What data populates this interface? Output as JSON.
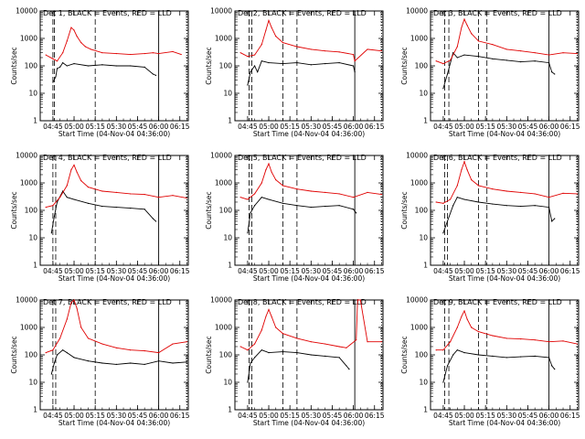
{
  "figure": {
    "ylabel": "Counts/sec",
    "xlabel": "Start Time (04-Nov-04 04:36:00)",
    "xticks": [
      "04:45",
      "05:00",
      "05:15",
      "05:30",
      "05:45",
      "06:00",
      "06:15"
    ],
    "yticks": [
      "1",
      "10",
      "100",
      "1000",
      "10000"
    ],
    "colors": {
      "events": "#000000",
      "lld": "#e00000",
      "axes": "#000000"
    }
  },
  "chart_data": [
    {
      "type": "line",
      "title": "Det 1, BLACK = Events, RED = LLD",
      "xlabel": "Start Time (04-Nov-04 04:36:00)",
      "ylabel": "Counts/sec",
      "yscale": "log",
      "ylim": [
        1,
        10000
      ],
      "xlim": [
        "04:36",
        "06:21"
      ],
      "markers": [
        "04:45",
        "04:46",
        "05:15",
        "06:00",
        "06:20"
      ],
      "series": [
        {
          "name": "BLACK = Events",
          "x": [
            "04:45",
            "04:47",
            "04:48",
            "04:50",
            "04:52",
            "04:55",
            "05:00",
            "05:10",
            "05:20",
            "05:30",
            "05:40",
            "05:50",
            "05:56",
            "05:58"
          ],
          "values": [
            25,
            40,
            80,
            90,
            130,
            100,
            120,
            100,
            110,
            100,
            100,
            90,
            50,
            45
          ]
        },
        {
          "name": "RED = LLD",
          "x": [
            "04:40",
            "04:45",
            "04:48",
            "04:52",
            "04:55",
            "04:58",
            "05:00",
            "05:02",
            "05:05",
            "05:08",
            "05:12",
            "05:20",
            "05:30",
            "05:40",
            "05:50",
            "05:56",
            "06:00",
            "06:10",
            "06:16"
          ],
          "values": [
            250,
            180,
            150,
            300,
            800,
            2500,
            2000,
            1200,
            700,
            500,
            400,
            300,
            280,
            260,
            280,
            300,
            280,
            330,
            260
          ]
        }
      ]
    },
    {
      "type": "line",
      "title": "Det 2, BLACK = Events, RED = LLD",
      "xlabel": "Start Time (04-Nov-04 04:36:00)",
      "ylabel": "Counts/sec",
      "yscale": "log",
      "ylim": [
        1,
        10000
      ],
      "xlim": [
        "04:36",
        "06:21"
      ],
      "markers": [
        "04:46",
        "04:48",
        "05:10",
        "05:20",
        "06:01",
        "06:20"
      ],
      "series": [
        {
          "name": "BLACK = Events",
          "x": [
            "04:45",
            "04:47",
            "04:50",
            "04:52",
            "04:55",
            "05:00",
            "05:10",
            "05:20",
            "05:30",
            "05:40",
            "05:50",
            "06:00",
            "06:01"
          ],
          "values": [
            20,
            60,
            100,
            60,
            150,
            130,
            120,
            130,
            110,
            120,
            130,
            100,
            60
          ]
        },
        {
          "name": "RED = LLD",
          "x": [
            "04:40",
            "04:45",
            "04:50",
            "04:55",
            "04:58",
            "05:00",
            "05:02",
            "05:05",
            "05:10",
            "05:20",
            "05:30",
            "05:40",
            "05:50",
            "06:00",
            "06:01",
            "06:10",
            "06:20"
          ],
          "values": [
            300,
            220,
            250,
            600,
            2000,
            4500,
            2500,
            1200,
            700,
            500,
            400,
            350,
            320,
            260,
            150,
            400,
            350
          ]
        }
      ]
    },
    {
      "type": "line",
      "title": "Det 3, BLACK = Events, RED = LLD",
      "xlabel": "Start Time (04-Nov-04 04:36:00)",
      "ylabel": "Counts/sec",
      "yscale": "log",
      "ylim": [
        1,
        10000
      ],
      "xlim": [
        "04:36",
        "06:21"
      ],
      "markers": [
        "04:46",
        "04:49",
        "05:10",
        "05:16",
        "06:00",
        "06:20"
      ],
      "series": [
        {
          "name": "BLACK = Events",
          "x": [
            "04:45",
            "04:48",
            "04:52",
            "04:55",
            "05:00",
            "05:10",
            "05:20",
            "05:30",
            "05:40",
            "05:50",
            "06:00",
            "06:02",
            "06:04"
          ],
          "values": [
            15,
            50,
            300,
            200,
            250,
            220,
            180,
            160,
            140,
            150,
            130,
            60,
            50
          ]
        },
        {
          "name": "RED = LLD",
          "x": [
            "04:40",
            "04:45",
            "04:50",
            "04:55",
            "04:58",
            "05:00",
            "05:02",
            "05:05",
            "05:10",
            "05:20",
            "05:30",
            "05:40",
            "05:50",
            "06:00",
            "06:10",
            "06:20"
          ],
          "values": [
            150,
            120,
            160,
            500,
            2500,
            5000,
            3000,
            1500,
            800,
            600,
            400,
            350,
            300,
            250,
            300,
            280
          ]
        }
      ]
    },
    {
      "type": "line",
      "title": "Det 4, BLACK = Events, RED = LLD",
      "xlabel": "Start Time (04-Nov-04 04:36:00)",
      "ylabel": "Counts/sec",
      "yscale": "log",
      "ylim": [
        1,
        10000
      ],
      "xlim": [
        "04:36",
        "06:21"
      ],
      "markers": [
        "04:45",
        "04:47",
        "05:15",
        "06:00",
        "06:20"
      ],
      "series": [
        {
          "name": "BLACK = Events",
          "x": [
            "04:44",
            "04:46",
            "04:48",
            "04:52",
            "04:55",
            "05:00",
            "05:10",
            "05:20",
            "05:30",
            "05:40",
            "05:50",
            "05:56",
            "05:58"
          ],
          "values": [
            15,
            60,
            200,
            500,
            300,
            250,
            180,
            140,
            130,
            120,
            110,
            50,
            40
          ]
        },
        {
          "name": "RED = LLD",
          "x": [
            "04:40",
            "04:45",
            "04:50",
            "04:55",
            "04:58",
            "05:00",
            "05:02",
            "05:05",
            "05:10",
            "05:20",
            "05:30",
            "05:40",
            "05:50",
            "06:00",
            "06:10",
            "06:20"
          ],
          "values": [
            130,
            150,
            300,
            800,
            3000,
            4500,
            2500,
            1200,
            700,
            500,
            450,
            400,
            380,
            300,
            350,
            280
          ]
        }
      ]
    },
    {
      "type": "line",
      "title": "Det 5, BLACK = Events, RED = LLD",
      "xlabel": "Start Time (04-Nov-04 04:36:00)",
      "ylabel": "Counts/sec",
      "yscale": "log",
      "ylim": [
        1,
        10000
      ],
      "xlim": [
        "04:36",
        "06:21"
      ],
      "markers": [
        "04:46",
        "04:48",
        "05:10",
        "05:20",
        "06:01",
        "06:20"
      ],
      "series": [
        {
          "name": "BLACK = Events",
          "x": [
            "04:45",
            "04:47",
            "04:50",
            "04:55",
            "05:00",
            "05:10",
            "05:20",
            "05:30",
            "05:40",
            "05:50",
            "06:00",
            "06:02"
          ],
          "values": [
            15,
            80,
            150,
            300,
            250,
            180,
            150,
            130,
            140,
            150,
            110,
            80
          ]
        },
        {
          "name": "RED = LLD",
          "x": [
            "04:40",
            "04:45",
            "04:50",
            "04:55",
            "04:58",
            "05:00",
            "05:02",
            "05:05",
            "05:10",
            "05:20",
            "05:30",
            "05:40",
            "05:50",
            "06:00",
            "06:10",
            "06:20"
          ],
          "values": [
            300,
            250,
            400,
            1000,
            3000,
            5000,
            2500,
            1300,
            800,
            600,
            500,
            450,
            400,
            300,
            450,
            380
          ]
        }
      ]
    },
    {
      "type": "line",
      "title": "Det 6, BLACK = Events, RED = LLD",
      "xlabel": "Start Time (04-Nov-04 04:36:00)",
      "ylabel": "Counts/sec",
      "yscale": "log",
      "ylim": [
        1,
        10000
      ],
      "xlim": [
        "04:36",
        "06:21"
      ],
      "markers": [
        "04:46",
        "04:48",
        "05:10",
        "05:16",
        "06:00",
        "06:20"
      ],
      "series": [
        {
          "name": "BLACK = Events",
          "x": [
            "04:45",
            "04:48",
            "04:52",
            "04:55",
            "05:00",
            "05:10",
            "05:20",
            "05:30",
            "05:40",
            "05:50",
            "06:00",
            "06:02",
            "06:04"
          ],
          "values": [
            15,
            40,
            150,
            300,
            250,
            200,
            170,
            150,
            140,
            150,
            130,
            40,
            50
          ]
        },
        {
          "name": "RED = LLD",
          "x": [
            "04:40",
            "04:45",
            "04:50",
            "04:55",
            "04:58",
            "05:00",
            "05:02",
            "05:05",
            "05:10",
            "05:20",
            "05:30",
            "05:40",
            "05:50",
            "06:00",
            "06:10",
            "06:20"
          ],
          "values": [
            200,
            180,
            250,
            800,
            3000,
            6000,
            3000,
            1300,
            800,
            600,
            500,
            450,
            400,
            300,
            420,
            400
          ]
        }
      ]
    },
    {
      "type": "line",
      "title": "Det 7, BLACK = Events, RED = LLD",
      "xlabel": "Start Time (04-Nov-04 04:36:00)",
      "ylabel": "Counts/sec",
      "yscale": "log",
      "ylim": [
        1,
        10000
      ],
      "xlim": [
        "04:36",
        "06:21"
      ],
      "markers": [
        "04:45",
        "04:47",
        "05:15",
        "06:00",
        "06:20"
      ],
      "series": [
        {
          "name": "BLACK = Events",
          "x": [
            "04:44",
            "04:46",
            "04:48",
            "04:52",
            "04:55",
            "05:00",
            "05:10",
            "05:20",
            "05:30",
            "05:40",
            "05:50",
            "06:00",
            "06:10",
            "06:20"
          ],
          "values": [
            20,
            50,
            100,
            150,
            120,
            80,
            60,
            50,
            45,
            50,
            45,
            60,
            50,
            55
          ]
        },
        {
          "name": "RED = LLD",
          "x": [
            "04:40",
            "04:45",
            "04:50",
            "04:55",
            "04:58",
            "05:00",
            "05:02",
            "05:05",
            "05:10",
            "05:20",
            "05:30",
            "05:40",
            "05:50",
            "06:00",
            "06:10",
            "06:20"
          ],
          "values": [
            120,
            150,
            400,
            2000,
            8000,
            10000,
            5000,
            1000,
            400,
            250,
            180,
            150,
            140,
            120,
            250,
            300
          ]
        }
      ]
    },
    {
      "type": "line",
      "title": "Det 8, BLACK = Events, RED = LLD",
      "xlabel": "Start Time (04-Nov-04 04:36:00)",
      "ylabel": "Counts/sec",
      "yscale": "log",
      "ylim": [
        1,
        10000
      ],
      "xlim": [
        "04:36",
        "06:21"
      ],
      "markers": [
        "04:46",
        "04:48",
        "05:10",
        "05:20",
        "06:01",
        "06:20"
      ],
      "series": [
        {
          "name": "BLACK = Events",
          "x": [
            "04:45",
            "04:47",
            "04:50",
            "04:55",
            "05:00",
            "05:10",
            "05:20",
            "05:30",
            "05:40",
            "05:50",
            "05:55",
            "05:57"
          ],
          "values": [
            10,
            50,
            80,
            150,
            120,
            130,
            120,
            100,
            90,
            80,
            40,
            30
          ]
        },
        {
          "name": "RED = LLD",
          "x": [
            "04:40",
            "04:45",
            "04:50",
            "04:55",
            "04:58",
            "05:00",
            "05:02",
            "05:05",
            "05:10",
            "05:20",
            "05:30",
            "05:40",
            "05:50",
            "05:55",
            "06:02",
            "06:03",
            "06:05",
            "06:10",
            "06:20"
          ],
          "values": [
            200,
            150,
            250,
            800,
            2500,
            4500,
            2500,
            1000,
            600,
            400,
            300,
            250,
            200,
            180,
            350,
            10000,
            10000,
            300,
            300
          ]
        }
      ]
    },
    {
      "type": "line",
      "title": "Det 9, BLACK = Events, RED = LLD",
      "xlabel": "Start Time (04-Nov-04 04:36:00)",
      "ylabel": "Counts/sec",
      "yscale": "log",
      "ylim": [
        1,
        10000
      ],
      "xlim": [
        "04:36",
        "06:21"
      ],
      "markers": [
        "04:46",
        "04:49",
        "05:10",
        "05:16",
        "06:00",
        "06:20"
      ],
      "series": [
        {
          "name": "BLACK = Events",
          "x": [
            "04:45",
            "04:48",
            "04:52",
            "04:55",
            "05:00",
            "05:10",
            "05:20",
            "05:30",
            "05:40",
            "05:50",
            "06:00",
            "06:02",
            "06:04"
          ],
          "values": [
            10,
            40,
            100,
            150,
            120,
            100,
            90,
            80,
            85,
            90,
            80,
            40,
            30
          ]
        },
        {
          "name": "RED = LLD",
          "x": [
            "04:40",
            "04:45",
            "04:50",
            "04:55",
            "04:58",
            "05:00",
            "05:02",
            "05:05",
            "05:10",
            "05:20",
            "05:30",
            "05:40",
            "05:50",
            "06:00",
            "06:10",
            "06:20"
          ],
          "values": [
            150,
            150,
            300,
            1000,
            2500,
            4000,
            2000,
            1000,
            700,
            500,
            400,
            380,
            350,
            300,
            320,
            250
          ]
        }
      ]
    }
  ]
}
